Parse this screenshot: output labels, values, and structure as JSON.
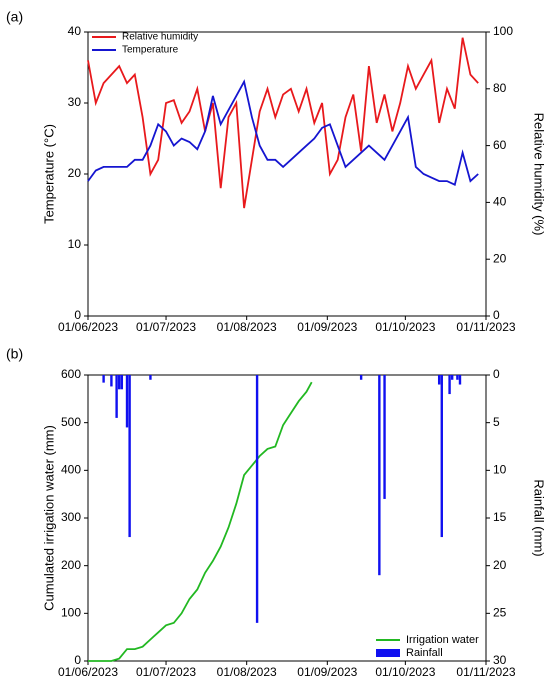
{
  "chart_data": [
    {
      "type": "line",
      "label": "(a)",
      "ylabel": "Temperature (°C)",
      "y2label": "Relative humidity (%)",
      "xlim": [
        "01/06/2023",
        "01/11/2023"
      ],
      "xticks": [
        "01/06/2023",
        "01/07/2023",
        "01/08/2023",
        "01/09/2023",
        "01/10/2023",
        "01/11/2023"
      ],
      "ylim": [
        0,
        40
      ],
      "yticks": [
        0,
        10,
        20,
        30,
        40
      ],
      "y2lim": [
        0,
        100
      ],
      "y2ticks": [
        0,
        20,
        40,
        60,
        80,
        100
      ],
      "legend": "upper left",
      "x": [
        "01/06/2023",
        "04/06/2023",
        "07/06/2023",
        "10/06/2023",
        "13/06/2023",
        "16/06/2023",
        "19/06/2023",
        "22/06/2023",
        "25/06/2023",
        "28/06/2023",
        "01/07/2023",
        "04/07/2023",
        "07/07/2023",
        "10/07/2023",
        "13/07/2023",
        "16/07/2023",
        "19/07/2023",
        "22/07/2023",
        "25/07/2023",
        "28/07/2023",
        "31/07/2023",
        "03/08/2023",
        "06/08/2023",
        "09/08/2023",
        "12/08/2023",
        "15/08/2023",
        "18/08/2023",
        "21/08/2023",
        "24/08/2023",
        "27/08/2023",
        "30/08/2023",
        "02/09/2023",
        "05/09/2023",
        "08/09/2023",
        "11/09/2023",
        "14/09/2023",
        "17/09/2023",
        "20/09/2023",
        "23/09/2023",
        "26/09/2023",
        "29/09/2023",
        "02/10/2023",
        "05/10/2023",
        "08/10/2023",
        "11/10/2023",
        "14/10/2023",
        "17/10/2023",
        "20/10/2023",
        "23/10/2023",
        "26/10/2023",
        "29/10/2023"
      ],
      "series": [
        {
          "name": "Relative humidity",
          "color": "#e8191c",
          "axis": "y2",
          "values": [
            90,
            75,
            82,
            85,
            88,
            82,
            85,
            70,
            50,
            55,
            75,
            76,
            68,
            72,
            80,
            65,
            75,
            45,
            70,
            75,
            38,
            55,
            72,
            80,
            70,
            78,
            80,
            72,
            80,
            68,
            75,
            50,
            55,
            70,
            78,
            58,
            88,
            68,
            78,
            65,
            75,
            88,
            80,
            85,
            90,
            68,
            80,
            73,
            98,
            85,
            82
          ]
        },
        {
          "name": "Temperature",
          "color": "#1515d0",
          "values": [
            19,
            20.5,
            21,
            21,
            21,
            21,
            22,
            22,
            24,
            27,
            26,
            24,
            25,
            24.5,
            23.5,
            26,
            31,
            27,
            29,
            31,
            33,
            28,
            24,
            22,
            22,
            21,
            22,
            23,
            24,
            25,
            26.5,
            27,
            24,
            21,
            22,
            23,
            24,
            23,
            22,
            24,
            26,
            28,
            21,
            20,
            19.5,
            19,
            19,
            18.5,
            23,
            19,
            20
          ]
        }
      ]
    },
    {
      "type": "line",
      "label": "(b)",
      "ylabel": "Cumulated irrigation water (mm)",
      "y2label": "Rainfall (mm)",
      "xlim": [
        "01/06/2023",
        "01/11/2023"
      ],
      "xticks": [
        "01/06/2023",
        "01/07/2023",
        "01/08/2023",
        "01/09/2023",
        "01/10/2023",
        "01/11/2023"
      ],
      "ylim": [
        0,
        600
      ],
      "yticks": [
        0,
        100,
        200,
        300,
        400,
        500,
        600
      ],
      "y2lim": [
        30,
        0
      ],
      "y2ticks": [
        0,
        5,
        10,
        15,
        20,
        25,
        30
      ],
      "legend": "lower right",
      "series": [
        {
          "name": "Irrigation water",
          "color": "#22b822",
          "type": "line",
          "x": [
            "01/06/2023",
            "04/06/2023",
            "07/06/2023",
            "10/06/2023",
            "13/06/2023",
            "16/06/2023",
            "19/06/2023",
            "22/06/2023",
            "25/06/2023",
            "28/06/2023",
            "01/07/2023",
            "04/07/2023",
            "07/07/2023",
            "10/07/2023",
            "13/07/2023",
            "16/07/2023",
            "19/07/2023",
            "22/07/2023",
            "25/07/2023",
            "28/07/2023",
            "31/07/2023",
            "03/08/2023",
            "06/08/2023",
            "09/08/2023",
            "12/08/2023",
            "15/08/2023",
            "18/08/2023",
            "21/08/2023",
            "24/08/2023",
            "26/08/2023"
          ],
          "values": [
            0,
            0,
            0,
            0,
            5,
            25,
            25,
            30,
            45,
            60,
            75,
            80,
            100,
            130,
            150,
            185,
            210,
            240,
            280,
            330,
            390,
            410,
            430,
            445,
            450,
            495,
            520,
            545,
            565,
            585
          ]
        },
        {
          "name": "Rainfall",
          "color": "#1010f0",
          "type": "bar",
          "axis": "y2",
          "x": [
            "07/06/2023",
            "10/06/2023",
            "12/06/2023",
            "13/06/2023",
            "14/06/2023",
            "16/06/2023",
            "17/06/2023",
            "25/06/2023",
            "05/08/2023",
            "14/09/2023",
            "21/09/2023",
            "23/09/2023",
            "14/10/2023",
            "15/10/2023",
            "18/10/2023",
            "19/10/2023",
            "21/10/2023",
            "22/10/2023"
          ],
          "values": [
            0.8,
            1.2,
            4.5,
            1.5,
            1.5,
            5.5,
            17,
            0.5,
            26,
            0.5,
            21,
            13,
            1,
            17,
            2,
            0.5,
            0.5,
            1
          ]
        }
      ]
    }
  ]
}
